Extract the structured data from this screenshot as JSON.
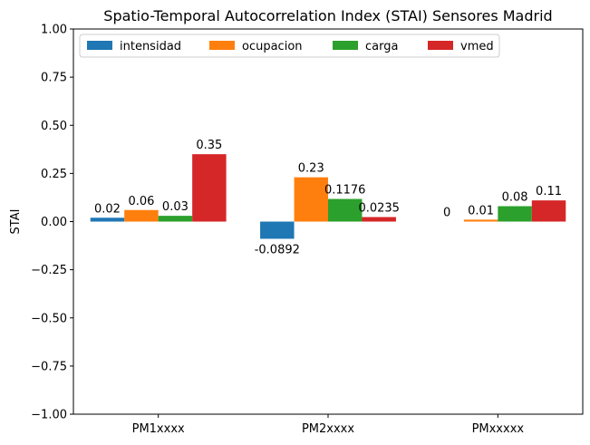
{
  "chart_data": {
    "type": "bar",
    "title": "Spatio-Temporal Autocorrelation Index (STAI) Sensores Madrid",
    "xlabel": "",
    "ylabel": "STAI",
    "ylim": [
      -1.0,
      1.0
    ],
    "yticks": [
      "−1.00",
      "−0.75",
      "−0.50",
      "−0.25",
      "0.00",
      "0.25",
      "0.50",
      "0.75",
      "1.00"
    ],
    "ytick_values": [
      -1.0,
      -0.75,
      -0.5,
      -0.25,
      0.0,
      0.25,
      0.5,
      0.75,
      1.0
    ],
    "categories": [
      "PM1xxxx",
      "PM2xxxx",
      "PMxxxxx"
    ],
    "grid": false,
    "legend_position": "top-left",
    "series": [
      {
        "name": "intensidad",
        "color": "#1f77b4",
        "values": [
          0.02,
          -0.0892,
          0
        ],
        "labels": [
          "0.02",
          "-0.0892",
          "0"
        ]
      },
      {
        "name": "ocupacion",
        "color": "#ff7f0e",
        "values": [
          0.06,
          0.23,
          0.01
        ],
        "labels": [
          "0.06",
          "0.23",
          "0.01"
        ]
      },
      {
        "name": "carga",
        "color": "#2ca02c",
        "values": [
          0.03,
          0.1176,
          0.08
        ],
        "labels": [
          "0.03",
          "0.1176",
          "0.08"
        ]
      },
      {
        "name": "vmed",
        "color": "#d62728",
        "values": [
          0.35,
          0.0235,
          0.11
        ],
        "labels": [
          "0.35",
          "0.0235",
          "0.11"
        ]
      }
    ]
  }
}
